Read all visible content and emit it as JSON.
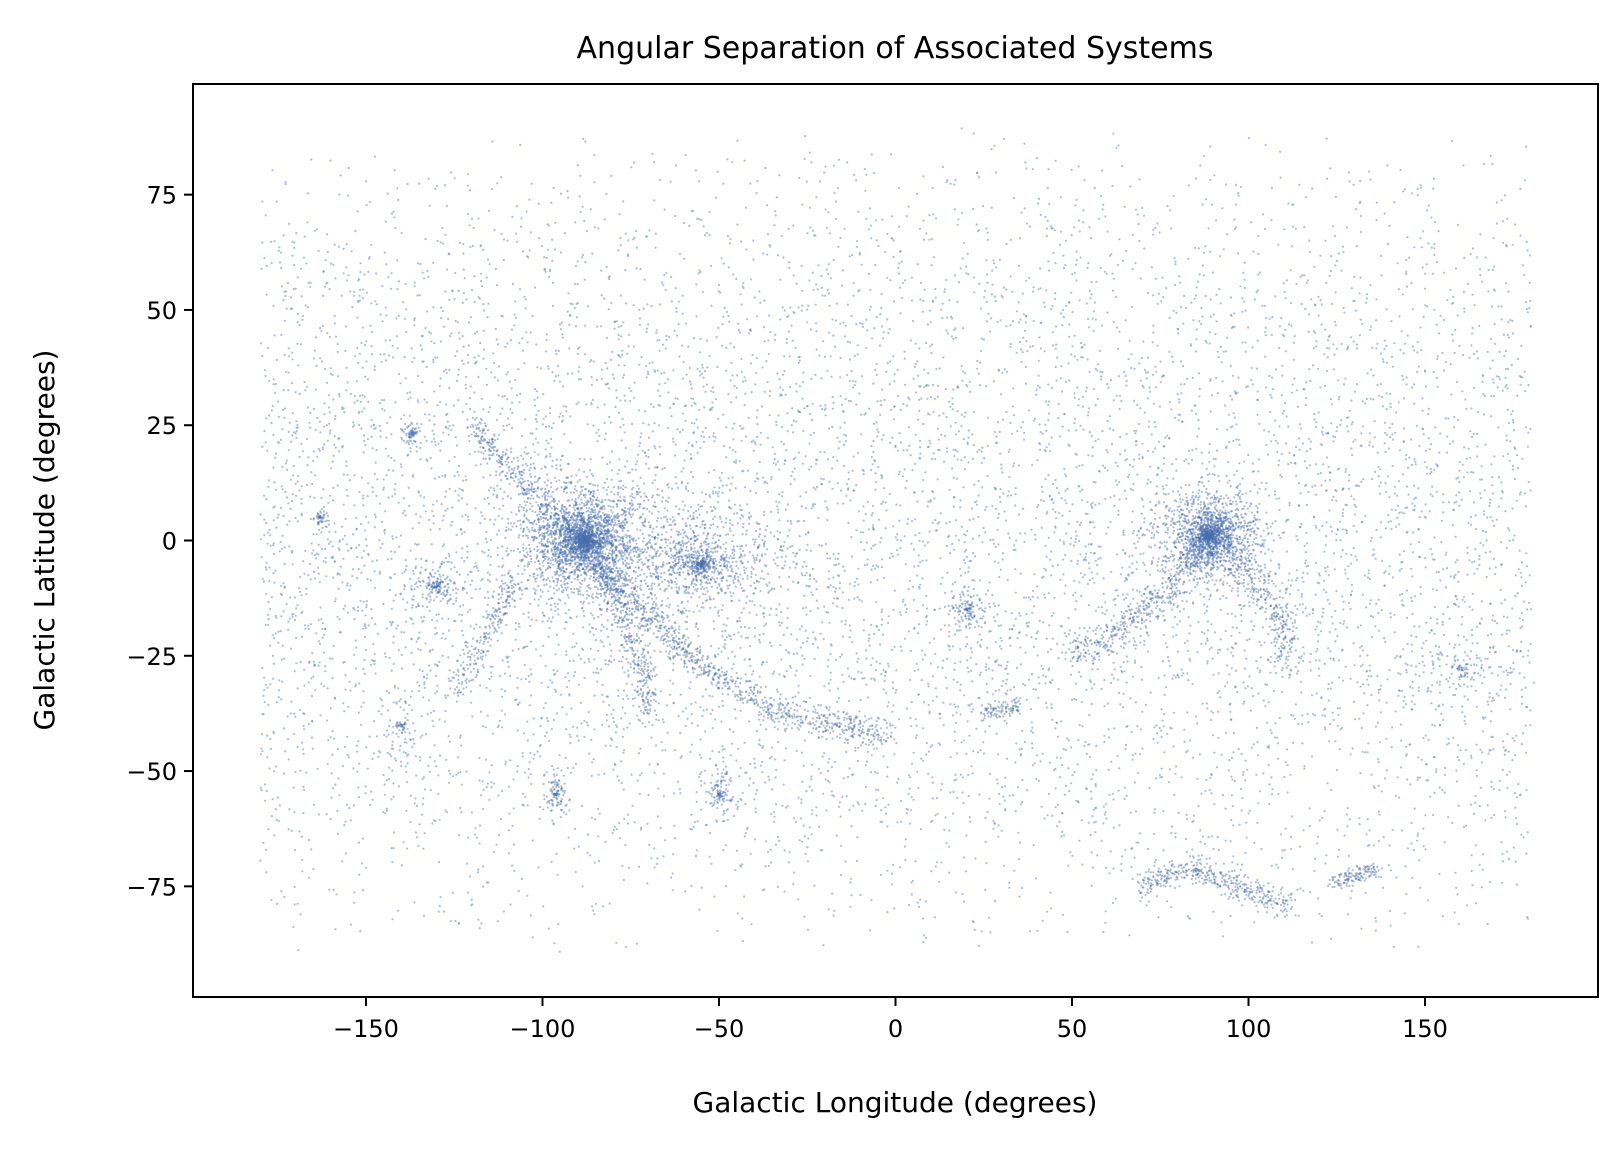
{
  "chart_data": {
    "type": "scatter",
    "title": "Angular Separation of Associated Systems",
    "xlabel": "Galactic Longitude (degrees)",
    "ylabel": "Galactic Latitude (degrees)",
    "xlim": [
      -199,
      199
    ],
    "ylim": [
      -99,
      99
    ],
    "x_ticks": [
      -150,
      -100,
      -50,
      0,
      50,
      100,
      150
    ],
    "y_ticks": [
      -75,
      -50,
      -25,
      0,
      25,
      50,
      75
    ],
    "x_tick_labels": [
      "−150",
      "−100",
      "−50",
      "0",
      "50",
      "100",
      "150"
    ],
    "y_tick_labels": [
      "−75",
      "−50",
      "−25",
      "0",
      "25",
      "50",
      "75"
    ],
    "grid": false,
    "legend": "none",
    "marker_color": "#4a6fae",
    "background_population": {
      "x_range": [
        -180,
        180
      ],
      "y_range": [
        -90,
        90
      ],
      "approx_count": 9000
    },
    "concentrations": [
      {
        "type": "blob",
        "center": [
          -88,
          0
        ],
        "spread": [
          11,
          7
        ],
        "approx_count": 2600
      },
      {
        "type": "blob",
        "center": [
          89,
          1
        ],
        "spread": [
          8,
          5.5
        ],
        "approx_count": 1700
      },
      {
        "type": "blob",
        "center": [
          -55,
          -5
        ],
        "spread": [
          14,
          7
        ],
        "approx_count": 900
      },
      {
        "type": "stream",
        "points": [
          [
            -120,
            25
          ],
          [
            -105,
            12
          ],
          [
            -90,
            0
          ],
          [
            -75,
            -13
          ],
          [
            -55,
            -27
          ],
          [
            -35,
            -37
          ],
          [
            -20,
            -40
          ],
          [
            -10,
            -41
          ],
          [
            -3,
            -42
          ]
        ],
        "width": 1.6,
        "approx_count": 1200
      },
      {
        "type": "stream",
        "points": [
          [
            -84,
            -5
          ],
          [
            -78,
            -15
          ],
          [
            -72,
            -26
          ],
          [
            -69,
            -38
          ]
        ],
        "width": 1.6,
        "approx_count": 350
      },
      {
        "type": "stream",
        "points": [
          [
            50,
            -25
          ],
          [
            65,
            -19
          ],
          [
            75,
            -12
          ],
          [
            83,
            -5
          ],
          [
            89,
            0
          ]
        ],
        "width": 1.8,
        "approx_count": 450
      },
      {
        "type": "stream",
        "points": [
          [
            95,
            -3
          ],
          [
            108,
            -14
          ],
          [
            112,
            -26
          ]
        ],
        "width": 2.2,
        "approx_count": 280
      },
      {
        "type": "stream",
        "points": [
          [
            70,
            -75
          ],
          [
            78,
            -72
          ],
          [
            85,
            -71
          ],
          [
            93,
            -74
          ],
          [
            100,
            -76
          ],
          [
            106,
            -78
          ],
          [
            113,
            -79
          ]
        ],
        "width": 1.5,
        "approx_count": 420
      },
      {
        "type": "stream",
        "points": [
          [
            124,
            -74
          ],
          [
            137,
            -71
          ]
        ],
        "width": 0.9,
        "approx_count": 130
      },
      {
        "type": "stream",
        "points": [
          [
            -125,
            -33
          ],
          [
            -115,
            -20
          ],
          [
            -108,
            -8
          ]
        ],
        "width": 1.5,
        "approx_count": 200
      },
      {
        "type": "stream",
        "points": [
          [
            25,
            -37
          ],
          [
            35,
            -36
          ]
        ],
        "width": 1.0,
        "approx_count": 90
      },
      {
        "type": "blob",
        "center": [
          -130,
          -10
        ],
        "spread": [
          5,
          4
        ],
        "approx_count": 180
      },
      {
        "type": "blob",
        "center": [
          -137,
          23
        ],
        "spread": [
          1.5,
          2
        ],
        "approx_count": 70
      },
      {
        "type": "blob",
        "center": [
          -163,
          5
        ],
        "spread": [
          1.5,
          1.5
        ],
        "approx_count": 55
      },
      {
        "type": "blob",
        "center": [
          -96,
          -55
        ],
        "spread": [
          2.5,
          3
        ],
        "approx_count": 110
      },
      {
        "type": "blob",
        "center": [
          -50,
          -55
        ],
        "spread": [
          3,
          4
        ],
        "approx_count": 120
      },
      {
        "type": "blob",
        "center": [
          20,
          -15
        ],
        "spread": [
          4,
          3
        ],
        "approx_count": 130
      },
      {
        "type": "blob",
        "center": [
          -140,
          -40
        ],
        "spread": [
          4,
          4
        ],
        "approx_count": 80
      },
      {
        "type": "blob",
        "center": [
          160,
          -28
        ],
        "spread": [
          9,
          5
        ],
        "approx_count": 120
      }
    ]
  }
}
